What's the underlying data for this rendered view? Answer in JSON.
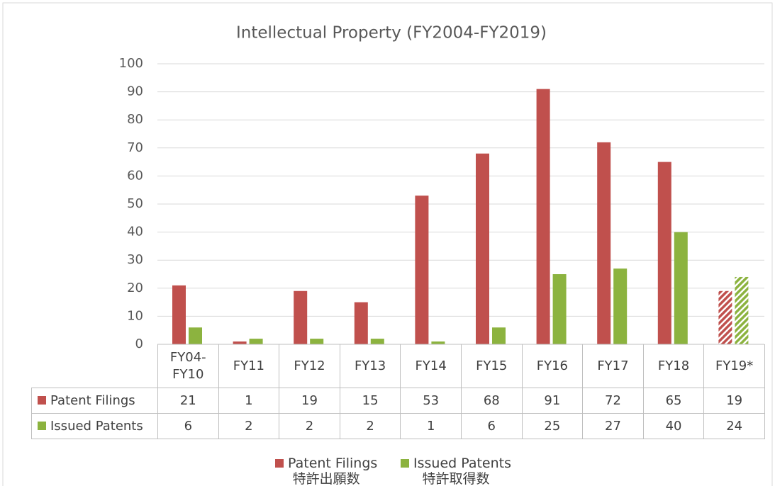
{
  "chart_data": {
    "type": "bar",
    "title": "Intellectual Property  (FY2004-FY2019)",
    "categories": [
      "FY04-FY10",
      "FY11",
      "FY12",
      "FY13",
      "FY14",
      "FY15",
      "FY16",
      "FY17",
      "FY18",
      "FY19*"
    ],
    "series": [
      {
        "name": "Patent Filings",
        "label_ja": "特許出願数",
        "color": "#c0504d",
        "values": [
          21,
          1,
          19,
          15,
          53,
          68,
          91,
          72,
          65,
          19
        ]
      },
      {
        "name": "Issued Patents",
        "label_ja": "特許取得数",
        "color": "#8cb33f",
        "values": [
          6,
          2,
          2,
          2,
          1,
          6,
          25,
          27,
          40,
          24
        ]
      }
    ],
    "hatched_categories": [
      "FY19*"
    ],
    "ylim": [
      0,
      100
    ],
    "yticks": [
      0,
      10,
      20,
      30,
      40,
      50,
      60,
      70,
      80,
      90,
      100
    ],
    "grid": true,
    "legend": "bottom",
    "data_table": true
  }
}
